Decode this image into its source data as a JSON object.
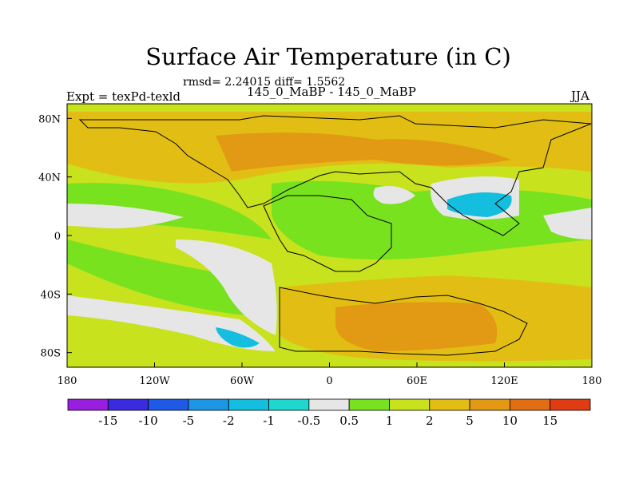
{
  "title": "Surface Air Temperature (in C)",
  "stats_line": "rmsd= 2.24015 diff= 1.5562",
  "experiment_label": "Expt = texPd-texld",
  "subtitle": "145_0_MaBP - 145_0_MaBP",
  "season": "JJA",
  "colors": {
    "lt_-15": "#9a1ee0",
    "-15_-10": "#3a2ae0",
    "-10_-5": "#1e5ae6",
    "-5_-2": "#1e96e6",
    "-2_-1": "#14bede",
    "-1_-0.5": "#1ed8d0",
    "-0.5_0.5": "#e6e6e6",
    "0.5_1": "#78e21e",
    "1_2": "#c8e21e",
    "2_5": "#e2be14",
    "5_10": "#e29a14",
    "10_15": "#e26e14",
    "gt_15": "#e03c14"
  },
  "chart_data": {
    "type": "heatmap",
    "title": "Surface Air Temperature (in C)",
    "x_ticks": [
      "180",
      "120W",
      "60W",
      "0",
      "60E",
      "120E",
      "180"
    ],
    "y_ticks": [
      "80N",
      "40N",
      "0",
      "40S",
      "80S"
    ],
    "xlim": [
      -180,
      180
    ],
    "ylim": [
      -90,
      90
    ],
    "colorbar_labels": [
      "-15",
      "-10",
      "-5",
      "-2",
      "-1",
      "-0.5",
      "0.5",
      "1",
      "2",
      "5",
      "10",
      "15"
    ],
    "regions": [
      {
        "name": "",
        "value_range": "2_5",
        "lon": [
          -180,
          180
        ],
        "lat": [
          50,
          90
        ]
      },
      {
        "name": "",
        "value_range": "5_10",
        "lon": [
          -80,
          80
        ],
        "lat": [
          45,
          70
        ]
      },
      {
        "name": "",
        "value_range": "0.5_1",
        "lon": [
          -180,
          -20
        ],
        "lat": [
          5,
          35
        ]
      },
      {
        "name": "",
        "value_range": "-0.5_0.5",
        "lon": [
          -180,
          -110
        ],
        "lat": [
          5,
          25
        ]
      },
      {
        "name": "",
        "value_range": "-0.5_0.5",
        "lon": [
          -130,
          -40
        ],
        "lat": [
          -60,
          -15
        ]
      },
      {
        "name": "",
        "value_range": "5_10",
        "lon": [
          -10,
          120
        ],
        "lat": [
          -65,
          -35
        ]
      },
      {
        "name": "",
        "value_range": "-2_-1",
        "lon": [
          80,
          130
        ],
        "lat": [
          10,
          30
        ]
      },
      {
        "name": "",
        "value_range": "0.5_1",
        "lon": [
          -30,
          30
        ],
        "lat": [
          -30,
          40
        ]
      }
    ]
  }
}
